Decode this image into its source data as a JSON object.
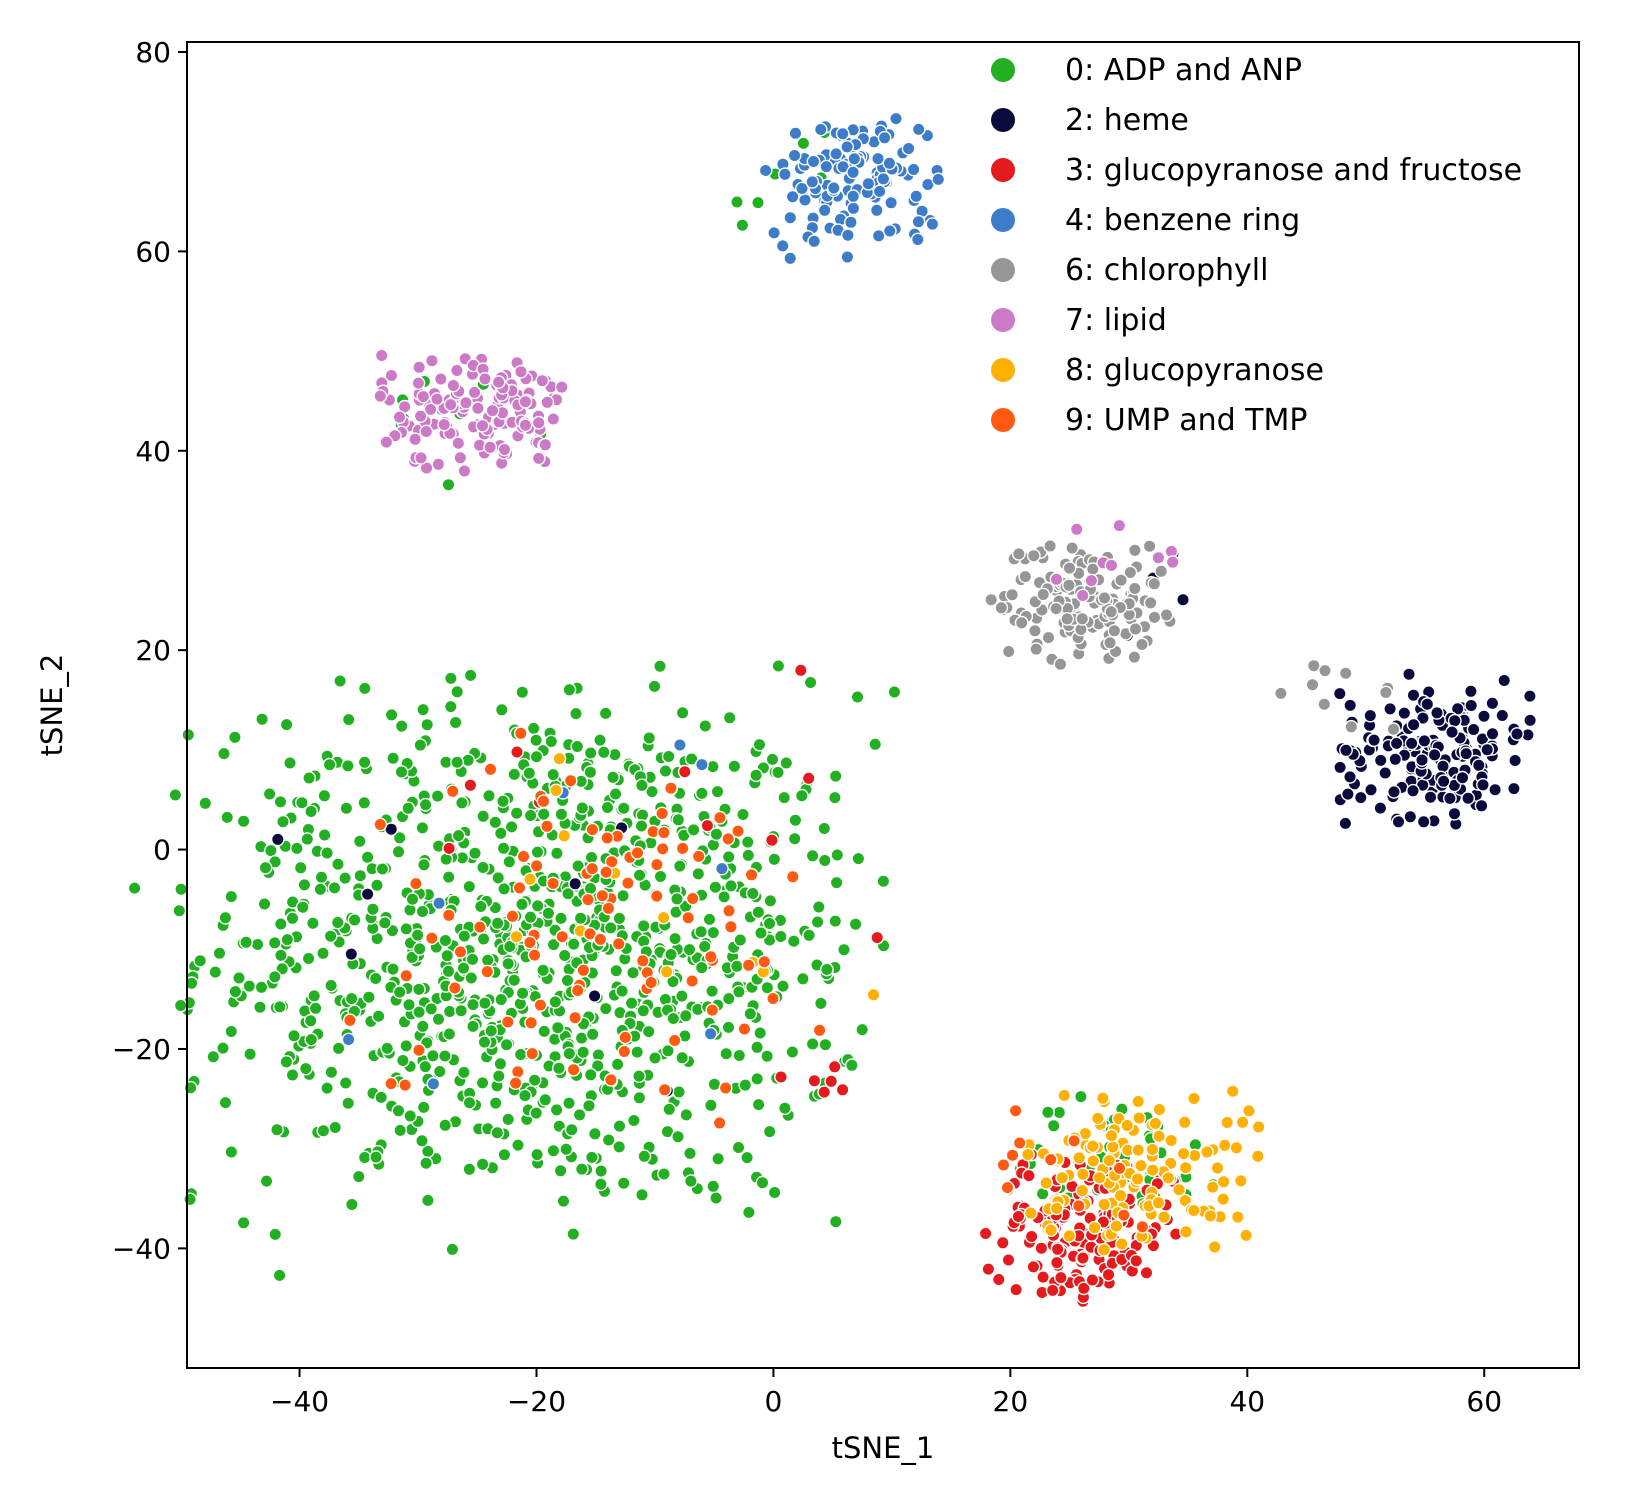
{
  "chart_data": {
    "type": "scatter",
    "title": "",
    "xlabel": "tSNE_1",
    "ylabel": "tSNE_2",
    "xlim": [
      -49.5,
      68
    ],
    "ylim": [
      -52,
      81
    ],
    "xticks": [
      -40,
      -20,
      0,
      20,
      40,
      60
    ],
    "yticks": [
      -40,
      -20,
      0,
      20,
      40,
      60,
      80
    ],
    "xtick_labels": [
      "−40",
      "−20",
      "0",
      "20",
      "40",
      "60"
    ],
    "ytick_labels": [
      "−40",
      "−20",
      "0",
      "20",
      "40",
      "60",
      "80"
    ],
    "grid": false,
    "legend_position": "top-right",
    "series": [
      {
        "name": "0: ADP and ANP",
        "color": "#22b022",
        "clusters": [
          {
            "center": [
              -20,
              -10
            ],
            "spread": [
              14,
              13
            ],
            "n": 1050
          },
          {
            "center": [
              29,
              -31
            ],
            "spread": [
              5,
              3
            ],
            "n": 45
          },
          {
            "center": [
              -25,
              43
            ],
            "spread": [
              4,
              3
            ],
            "n": 12
          },
          {
            "center": [
              3,
              67
            ],
            "spread": [
              4,
              3
            ],
            "n": 8
          }
        ]
      },
      {
        "name": "2: heme",
        "color": "#0a0a3c",
        "clusters": [
          {
            "center": [
              56,
              10
            ],
            "spread": [
              4,
              3.5
            ],
            "n": 170
          },
          {
            "center": [
              31,
              25
            ],
            "spread": [
              2.5,
              3
            ],
            "n": 6
          },
          {
            "center": [
              -20,
              -5
            ],
            "spread": [
              14,
              12
            ],
            "n": 8
          }
        ]
      },
      {
        "name": "3: glucopyranose and fructose",
        "color": "#e41a1c",
        "clusters": [
          {
            "center": [
              26,
              -38
            ],
            "spread": [
              4,
              3.5
            ],
            "n": 165
          },
          {
            "center": [
              -12,
              5
            ],
            "spread": [
              10,
              8
            ],
            "n": 10
          },
          {
            "center": [
              5,
              -23
            ],
            "spread": [
              3,
              2
            ],
            "n": 6
          }
        ]
      },
      {
        "name": "4: benzene ring",
        "color": "#3d7cc9",
        "clusters": [
          {
            "center": [
              7,
              67
            ],
            "spread": [
              3.5,
              3.5
            ],
            "n": 130
          },
          {
            "center": [
              -20,
              -10
            ],
            "spread": [
              14,
              12
            ],
            "n": 8
          }
        ]
      },
      {
        "name": "6: chlorophyll",
        "color": "#969696",
        "clusters": [
          {
            "center": [
              26,
              25
            ],
            "spread": [
              3.5,
              3
            ],
            "n": 140
          },
          {
            "center": [
              48,
              15
            ],
            "spread": [
              2.5,
              2
            ],
            "n": 10
          }
        ]
      },
      {
        "name": "7: lipid",
        "color": "#cc79c8",
        "clusters": [
          {
            "center": [
              -25,
              44
            ],
            "spread": [
              4,
              3
            ],
            "n": 150
          },
          {
            "center": [
              29,
              28
            ],
            "spread": [
              3,
              2.5
            ],
            "n": 10
          }
        ]
      },
      {
        "name": "8: glucopyranose",
        "color": "#ffb000",
        "clusters": [
          {
            "center": [
              31,
              -32
            ],
            "spread": [
              5,
              4
            ],
            "n": 130
          },
          {
            "center": [
              -15,
              -8
            ],
            "spread": [
              12,
              10
            ],
            "n": 12
          }
        ]
      },
      {
        "name": "9: UMP and TMP",
        "color": "#ff5a10",
        "clusters": [
          {
            "center": [
              -15,
              -8
            ],
            "spread": [
              10,
              9
            ],
            "n": 95
          },
          {
            "center": [
              25,
              -32
            ],
            "spread": [
              4,
              3
            ],
            "n": 12
          }
        ]
      }
    ]
  }
}
